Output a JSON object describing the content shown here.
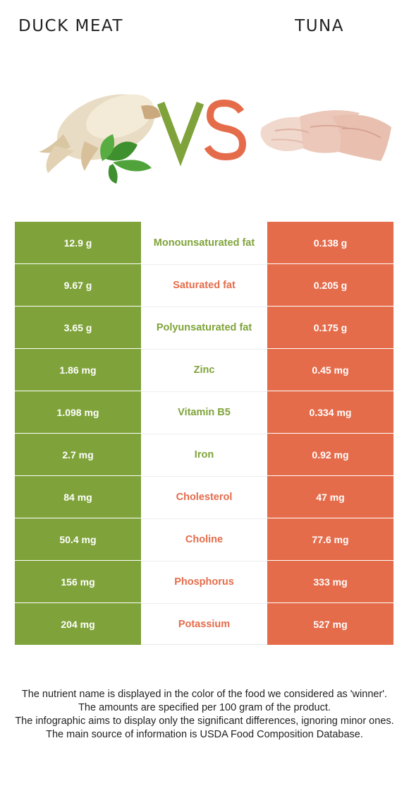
{
  "header": {
    "left_food": "DUCK MEAT",
    "right_food": "TUNA",
    "vs_letters": "VS"
  },
  "colors": {
    "duck": "#7fa33a",
    "tuna": "#e56c4b"
  },
  "rows": [
    {
      "left": "12.9 g",
      "nutrient": "Monounsaturated fat",
      "right": "0.138 g",
      "winner": "duck"
    },
    {
      "left": "9.67 g",
      "nutrient": "Saturated fat",
      "right": "0.205 g",
      "winner": "tuna"
    },
    {
      "left": "3.65 g",
      "nutrient": "Polyunsaturated fat",
      "right": "0.175 g",
      "winner": "duck"
    },
    {
      "left": "1.86 mg",
      "nutrient": "Zinc",
      "right": "0.45 mg",
      "winner": "duck"
    },
    {
      "left": "1.098 mg",
      "nutrient": "Vitamin B5",
      "right": "0.334 mg",
      "winner": "duck"
    },
    {
      "left": "2.7 mg",
      "nutrient": "Iron",
      "right": "0.92 mg",
      "winner": "duck"
    },
    {
      "left": "84 mg",
      "nutrient": "Cholesterol",
      "right": "47 mg",
      "winner": "tuna"
    },
    {
      "left": "50.4 mg",
      "nutrient": "Choline",
      "right": "77.6 mg",
      "winner": "tuna"
    },
    {
      "left": "156 mg",
      "nutrient": "Phosphorus",
      "right": "333 mg",
      "winner": "tuna"
    },
    {
      "left": "204 mg",
      "nutrient": "Potassium",
      "right": "527 mg",
      "winner": "tuna"
    }
  ],
  "notes": [
    "The nutrient name is displayed in the color of the food we considered as 'winner'.",
    "The amounts are specified per 100 gram of the product.",
    "The infographic aims to display only the significant differences, ignoring minor ones.",
    "The main source of information is USDA Food Composition Database."
  ]
}
